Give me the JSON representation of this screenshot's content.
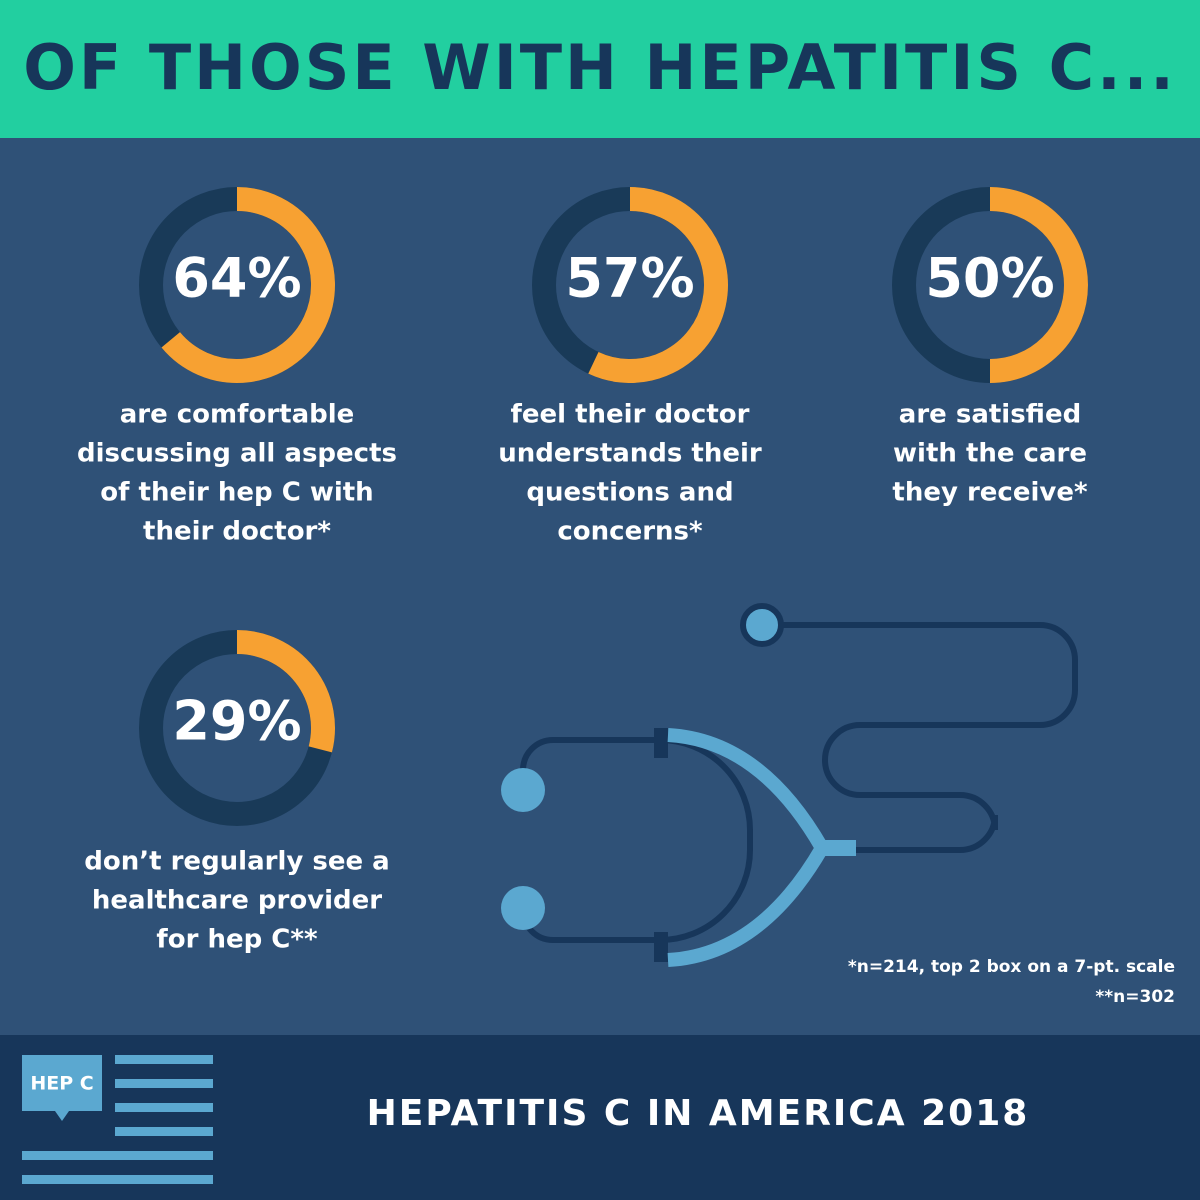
{
  "header": {
    "title": "OF THOSE WITH HEPATITIS C..."
  },
  "chart_data": [
    {
      "type": "donut",
      "values": [
        64
      ],
      "value_labels": [
        "64%"
      ],
      "color": "#f7a132",
      "track_color": "#193a58",
      "caption": [
        "are comfortable",
        "discussing all aspects",
        "of their hep C with",
        "their doctor*"
      ]
    },
    {
      "type": "donut",
      "values": [
        57
      ],
      "value_labels": [
        "57%"
      ],
      "color": "#f7a132",
      "track_color": "#193a58",
      "caption": [
        "feel their doctor",
        "understands their",
        "questions and",
        "concerns*"
      ]
    },
    {
      "type": "donut",
      "values": [
        50
      ],
      "value_labels": [
        "50%"
      ],
      "color": "#f7a132",
      "track_color": "#193a58",
      "caption": [
        "are satisfied",
        "with the care",
        "they receive*"
      ]
    },
    {
      "type": "donut",
      "values": [
        29
      ],
      "value_labels": [
        "29%"
      ],
      "color": "#f7a132",
      "track_color": "#193a58",
      "caption": [
        "don’t regularly see a",
        "healthcare provider",
        "for hep C**"
      ]
    }
  ],
  "footnotes": [
    "*n=214, top 2 box on a 7-pt. scale",
    "**n=302"
  ],
  "footer": {
    "logo": "HEP C",
    "title": "HEPATITIS C IN AMERICA 2018"
  }
}
